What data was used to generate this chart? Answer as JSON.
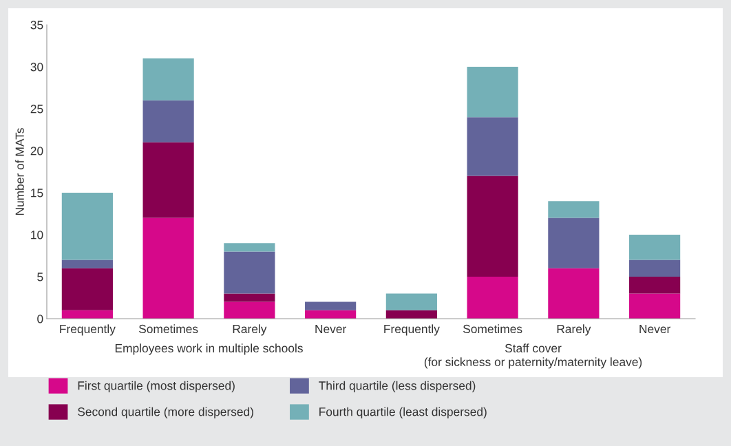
{
  "chart_data": {
    "type": "bar",
    "ylabel": "Number of MATs",
    "categories": [
      "Frequently",
      "Sometimes",
      "Rarely",
      "Never",
      "Frequently",
      "Sometimes",
      "Rarely",
      "Never"
    ],
    "stacked": true,
    "series": [
      {
        "name": "First quartile (most dispersed)",
        "color": "#d6088a",
        "values": [
          1,
          12,
          2,
          1,
          0,
          5,
          6,
          3
        ]
      },
      {
        "name": "Second quartile (more dispersed)",
        "color": "#870050",
        "values": [
          5,
          9,
          1,
          0,
          1,
          12,
          0,
          2
        ]
      },
      {
        "name": "Third quartile (less dispersed)",
        "color": "#62649a",
        "values": [
          1,
          5,
          5,
          1,
          0,
          7,
          6,
          2
        ]
      },
      {
        "name": "Fourth quartile (least dispersed)",
        "color": "#74b0b7",
        "values": [
          8,
          5,
          1,
          0,
          2,
          6,
          2,
          3
        ]
      }
    ],
    "ylim": [
      0,
      35
    ],
    "yticks": [
      0,
      5,
      10,
      15,
      20,
      25,
      30,
      35
    ],
    "grid": false,
    "legend": "bottom",
    "annotations": [
      "Employees work in multiple schools",
      "Staff cover\n(for sickness or paternity/maternity leave)"
    ]
  }
}
